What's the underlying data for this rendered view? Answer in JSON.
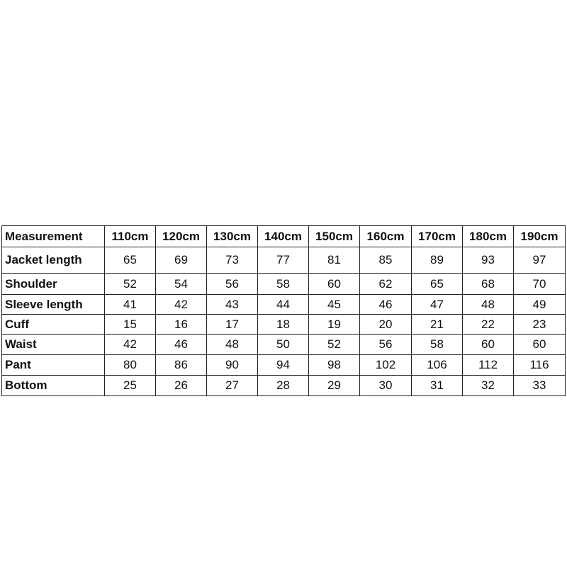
{
  "table": {
    "header": [
      "Measurement",
      "110cm",
      "120cm",
      "130cm",
      "140cm",
      "150cm",
      "160cm",
      "170cm",
      "180cm",
      "190cm"
    ],
    "rows": [
      {
        "label": "Jacket length",
        "values": [
          65,
          69,
          73,
          77,
          81,
          85,
          89,
          93,
          97
        ]
      },
      {
        "label": "Shoulder",
        "values": [
          52,
          54,
          56,
          58,
          60,
          62,
          65,
          68,
          70
        ]
      },
      {
        "label": "Sleeve length",
        "values": [
          41,
          42,
          43,
          44,
          45,
          46,
          47,
          48,
          49
        ]
      },
      {
        "label": "Cuff",
        "values": [
          15,
          16,
          17,
          18,
          19,
          20,
          21,
          22,
          23
        ]
      },
      {
        "label": "Waist",
        "values": [
          42,
          46,
          48,
          50,
          52,
          56,
          58,
          60,
          60
        ]
      },
      {
        "label": "Pant",
        "values": [
          80,
          86,
          90,
          94,
          98,
          102,
          106,
          112,
          116
        ]
      },
      {
        "label": "Bottom",
        "values": [
          25,
          26,
          27,
          28,
          29,
          30,
          31,
          32,
          33
        ]
      }
    ]
  }
}
